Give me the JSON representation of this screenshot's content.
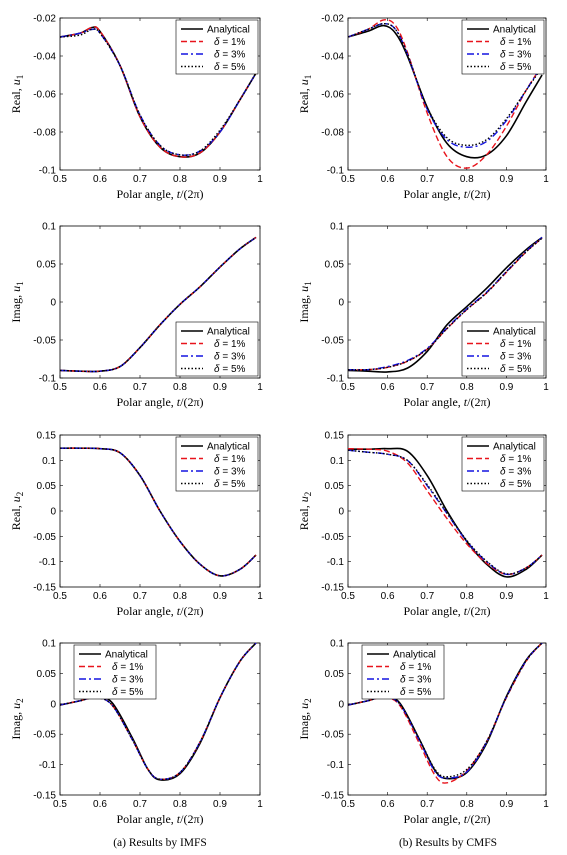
{
  "captions": {
    "left": "(a) Results by IMFS",
    "right": "(b) Results by CMFS"
  },
  "legend_labels": [
    "Analytical",
    "δ = 1%",
    "δ = 3%",
    "δ = 5%"
  ],
  "series_colors": [
    "#000000",
    "#e8141c",
    "#1414e0",
    "#000000"
  ],
  "chart_data": [
    {
      "type": "line",
      "panel": "real-u1-imfs",
      "xlabel": "Polar angle, t/(2π)",
      "ylabel": "Real, u1",
      "xlim": [
        0.5,
        1.0
      ],
      "ylim": [
        -0.1,
        -0.02
      ],
      "xticks": [
        "0.5",
        "0.6",
        "0.7",
        "0.8",
        "0.9",
        "1"
      ],
      "yticks": [
        "-0.1",
        "-0.08",
        "-0.06",
        "-0.04",
        "-0.02"
      ],
      "legend": "top-right",
      "x": [
        0.5,
        0.55,
        0.58,
        0.6,
        0.65,
        0.7,
        0.75,
        0.8,
        0.85,
        0.9,
        0.95,
        0.99
      ],
      "series": [
        {
          "name": "Analytical",
          "values": [
            -0.03,
            -0.028,
            -0.025,
            -0.027,
            -0.045,
            -0.072,
            -0.088,
            -0.093,
            -0.091,
            -0.08,
            -0.063,
            -0.049
          ]
        },
        {
          "name": "δ = 1%",
          "values": [
            -0.03,
            -0.028,
            -0.025,
            -0.027,
            -0.045,
            -0.072,
            -0.088,
            -0.093,
            -0.091,
            -0.08,
            -0.063,
            -0.049
          ]
        },
        {
          "name": "δ = 3%",
          "values": [
            -0.03,
            -0.028,
            -0.026,
            -0.028,
            -0.045,
            -0.071,
            -0.087,
            -0.092,
            -0.09,
            -0.08,
            -0.063,
            -0.049
          ]
        },
        {
          "name": "δ = 5%",
          "values": [
            -0.03,
            -0.029,
            -0.026,
            -0.028,
            -0.045,
            -0.071,
            -0.087,
            -0.092,
            -0.09,
            -0.079,
            -0.063,
            -0.049
          ]
        }
      ]
    },
    {
      "type": "line",
      "panel": "real-u1-cmfs",
      "xlabel": "Polar angle, t/(2π)",
      "ylabel": "Real, u1",
      "xlim": [
        0.5,
        1.0
      ],
      "ylim": [
        -0.1,
        -0.02
      ],
      "xticks": [
        "0.5",
        "0.6",
        "0.7",
        "0.8",
        "0.9",
        "1"
      ],
      "yticks": [
        "-0.1",
        "-0.08",
        "-0.06",
        "-0.04",
        "-0.02"
      ],
      "legend": "top-right",
      "x": [
        0.5,
        0.55,
        0.59,
        0.62,
        0.65,
        0.7,
        0.75,
        0.8,
        0.85,
        0.9,
        0.95,
        0.99
      ],
      "series": [
        {
          "name": "Analytical",
          "values": [
            -0.03,
            -0.027,
            -0.024,
            -0.028,
            -0.04,
            -0.067,
            -0.086,
            -0.093,
            -0.092,
            -0.082,
            -0.064,
            -0.05
          ]
        },
        {
          "name": "δ = 1%",
          "values": [
            -0.03,
            -0.026,
            -0.021,
            -0.024,
            -0.038,
            -0.07,
            -0.093,
            -0.099,
            -0.092,
            -0.077,
            -0.058,
            -0.045
          ]
        },
        {
          "name": "δ = 3%",
          "values": [
            -0.03,
            -0.026,
            -0.023,
            -0.026,
            -0.039,
            -0.068,
            -0.084,
            -0.088,
            -0.085,
            -0.074,
            -0.058,
            -0.045
          ]
        },
        {
          "name": "δ = 5%",
          "values": [
            -0.03,
            -0.026,
            -0.023,
            -0.026,
            -0.039,
            -0.067,
            -0.083,
            -0.087,
            -0.084,
            -0.073,
            -0.058,
            -0.046
          ]
        }
      ]
    },
    {
      "type": "line",
      "panel": "imag-u1-imfs",
      "xlabel": "Polar angle, t/(2π)",
      "ylabel": "Imag, u1",
      "xlim": [
        0.5,
        1.0
      ],
      "ylim": [
        -0.1,
        0.1
      ],
      "xticks": [
        "0.5",
        "0.6",
        "0.7",
        "0.8",
        "0.9",
        "1"
      ],
      "yticks": [
        "-0.1",
        "-0.05",
        "0",
        "0.05",
        "0.1"
      ],
      "legend": "bottom-right",
      "x": [
        0.5,
        0.55,
        0.6,
        0.65,
        0.7,
        0.75,
        0.8,
        0.85,
        0.9,
        0.95,
        0.99
      ],
      "series": [
        {
          "name": "Analytical",
          "values": [
            -0.09,
            -0.091,
            -0.091,
            -0.085,
            -0.06,
            -0.03,
            -0.003,
            0.02,
            0.046,
            0.07,
            0.085
          ]
        },
        {
          "name": "δ = 1%",
          "values": [
            -0.09,
            -0.091,
            -0.091,
            -0.085,
            -0.06,
            -0.03,
            -0.003,
            0.02,
            0.046,
            0.07,
            0.085
          ]
        },
        {
          "name": "δ = 3%",
          "values": [
            -0.09,
            -0.091,
            -0.091,
            -0.085,
            -0.06,
            -0.03,
            -0.003,
            0.02,
            0.046,
            0.07,
            0.085
          ]
        },
        {
          "name": "δ = 5%",
          "values": [
            -0.09,
            -0.091,
            -0.091,
            -0.085,
            -0.06,
            -0.03,
            -0.003,
            0.02,
            0.046,
            0.07,
            0.085
          ]
        }
      ]
    },
    {
      "type": "line",
      "panel": "imag-u1-cmfs",
      "xlabel": "Polar angle, t/(2π)",
      "ylabel": "Imag, u1",
      "xlim": [
        0.5,
        1.0
      ],
      "ylim": [
        -0.1,
        0.1
      ],
      "xticks": [
        "0.5",
        "0.6",
        "0.7",
        "0.8",
        "0.9",
        "1"
      ],
      "yticks": [
        "-0.1",
        "-0.05",
        "0",
        "0.05",
        "0.1"
      ],
      "legend": "bottom-right",
      "x": [
        0.5,
        0.55,
        0.6,
        0.65,
        0.7,
        0.75,
        0.8,
        0.85,
        0.9,
        0.95,
        0.99
      ],
      "series": [
        {
          "name": "Analytical",
          "values": [
            -0.09,
            -0.091,
            -0.092,
            -0.087,
            -0.065,
            -0.03,
            -0.006,
            0.018,
            0.045,
            0.069,
            0.085
          ]
        },
        {
          "name": "δ = 1%",
          "values": [
            -0.089,
            -0.089,
            -0.086,
            -0.078,
            -0.062,
            -0.035,
            -0.01,
            0.012,
            0.039,
            0.066,
            0.084
          ]
        },
        {
          "name": "δ = 3%",
          "values": [
            -0.089,
            -0.089,
            -0.085,
            -0.077,
            -0.061,
            -0.034,
            -0.009,
            0.013,
            0.04,
            0.067,
            0.085
          ]
        },
        {
          "name": "δ = 5%",
          "values": [
            -0.089,
            -0.089,
            -0.086,
            -0.078,
            -0.062,
            -0.035,
            -0.01,
            0.012,
            0.04,
            0.066,
            0.084
          ]
        }
      ]
    },
    {
      "type": "line",
      "panel": "real-u2-imfs",
      "xlabel": "Polar angle, t/(2π)",
      "ylabel": "Real, u2",
      "xlim": [
        0.5,
        1.0
      ],
      "ylim": [
        -0.15,
        0.15
      ],
      "xticks": [
        "0.5",
        "0.6",
        "0.7",
        "0.8",
        "0.9",
        "1"
      ],
      "yticks": [
        "-0.15",
        "-0.1",
        "-0.05",
        "0",
        "0.05",
        "0.1",
        "0.15"
      ],
      "legend": "top-right",
      "x": [
        0.5,
        0.55,
        0.6,
        0.65,
        0.7,
        0.75,
        0.8,
        0.85,
        0.9,
        0.95,
        0.99
      ],
      "series": [
        {
          "name": "Analytical",
          "values": [
            0.124,
            0.124,
            0.123,
            0.115,
            0.07,
            0.0,
            -0.06,
            -0.105,
            -0.128,
            -0.115,
            -0.087
          ]
        },
        {
          "name": "δ = 1%",
          "values": [
            0.124,
            0.124,
            0.123,
            0.115,
            0.07,
            0.0,
            -0.06,
            -0.105,
            -0.128,
            -0.115,
            -0.087
          ]
        },
        {
          "name": "δ = 3%",
          "values": [
            0.124,
            0.124,
            0.123,
            0.115,
            0.07,
            0.0,
            -0.06,
            -0.105,
            -0.128,
            -0.115,
            -0.087
          ]
        },
        {
          "name": "δ = 5%",
          "values": [
            0.124,
            0.124,
            0.123,
            0.115,
            0.07,
            0.0,
            -0.06,
            -0.105,
            -0.128,
            -0.115,
            -0.087
          ]
        }
      ]
    },
    {
      "type": "line",
      "panel": "real-u2-cmfs",
      "xlabel": "Polar angle, t/(2π)",
      "ylabel": "Real, u2",
      "xlim": [
        0.5,
        1.0
      ],
      "ylim": [
        -0.15,
        0.15
      ],
      "xticks": [
        "0.5",
        "0.6",
        "0.7",
        "0.8",
        "0.9",
        "1"
      ],
      "yticks": [
        "-0.15",
        "-0.1",
        "-0.05",
        "0",
        "0.05",
        "0.1",
        "0.15"
      ],
      "legend": "top-right",
      "x": [
        0.5,
        0.55,
        0.6,
        0.65,
        0.7,
        0.75,
        0.8,
        0.85,
        0.9,
        0.95,
        0.99
      ],
      "series": [
        {
          "name": "Analytical",
          "values": [
            0.122,
            0.122,
            0.123,
            0.118,
            0.07,
            0.0,
            -0.06,
            -0.105,
            -0.13,
            -0.115,
            -0.087
          ]
        },
        {
          "name": "δ = 1%",
          "values": [
            0.123,
            0.122,
            0.118,
            0.095,
            0.04,
            -0.015,
            -0.065,
            -0.103,
            -0.125,
            -0.112,
            -0.087
          ]
        },
        {
          "name": "δ = 3%",
          "values": [
            0.12,
            0.116,
            0.112,
            0.1,
            0.05,
            -0.005,
            -0.06,
            -0.1,
            -0.125,
            -0.112,
            -0.087
          ]
        },
        {
          "name": "δ = 5%",
          "values": [
            0.12,
            0.116,
            0.112,
            0.1,
            0.052,
            -0.004,
            -0.058,
            -0.099,
            -0.124,
            -0.112,
            -0.087
          ]
        }
      ]
    },
    {
      "type": "line",
      "panel": "imag-u2-imfs",
      "xlabel": "Polar angle, t/(2π)",
      "ylabel": "Imag, u2",
      "xlim": [
        0.5,
        1.0
      ],
      "ylim": [
        -0.15,
        0.1
      ],
      "xticks": [
        "0.5",
        "0.6",
        "0.7",
        "0.8",
        "0.9",
        "1"
      ],
      "yticks": [
        "-0.15",
        "-0.1",
        "-0.05",
        "0",
        "0.05",
        "0.1"
      ],
      "legend": "top-left",
      "x": [
        0.5,
        0.55,
        0.59,
        0.63,
        0.68,
        0.72,
        0.75,
        0.8,
        0.85,
        0.9,
        0.95,
        0.99
      ],
      "series": [
        {
          "name": "Analytical",
          "values": [
            -0.002,
            0.005,
            0.012,
            0.002,
            -0.055,
            -0.108,
            -0.125,
            -0.115,
            -0.065,
            0.01,
            0.07,
            0.1
          ]
        },
        {
          "name": "δ = 1%",
          "values": [
            -0.002,
            0.005,
            0.01,
            -0.002,
            -0.058,
            -0.108,
            -0.124,
            -0.113,
            -0.063,
            0.01,
            0.07,
            0.1
          ]
        },
        {
          "name": "δ = 3%",
          "values": [
            -0.002,
            0.005,
            0.01,
            -0.002,
            -0.058,
            -0.108,
            -0.124,
            -0.113,
            -0.063,
            0.01,
            0.07,
            0.1
          ]
        },
        {
          "name": "δ = 5%",
          "values": [
            -0.002,
            0.005,
            0.01,
            -0.002,
            -0.058,
            -0.108,
            -0.124,
            -0.113,
            -0.063,
            0.01,
            0.07,
            0.1
          ]
        }
      ]
    },
    {
      "type": "line",
      "panel": "imag-u2-cmfs",
      "xlabel": "Polar angle, t/(2π)",
      "ylabel": "Imag, u2",
      "xlim": [
        0.5,
        1.0
      ],
      "ylim": [
        -0.15,
        0.1
      ],
      "xticks": [
        "0.5",
        "0.6",
        "0.7",
        "0.8",
        "0.9",
        "1"
      ],
      "yticks": [
        "-0.15",
        "-0.1",
        "-0.05",
        "0",
        "0.05",
        "0.1"
      ],
      "legend": "top-left",
      "x": [
        0.5,
        0.55,
        0.59,
        0.63,
        0.68,
        0.72,
        0.75,
        0.8,
        0.85,
        0.9,
        0.95,
        0.99
      ],
      "series": [
        {
          "name": "Analytical",
          "values": [
            -0.002,
            0.005,
            0.012,
            0.002,
            -0.058,
            -0.11,
            -0.123,
            -0.113,
            -0.065,
            0.012,
            0.072,
            0.1
          ]
        },
        {
          "name": "δ = 1%",
          "values": [
            -0.002,
            0.005,
            0.01,
            -0.002,
            -0.065,
            -0.118,
            -0.13,
            -0.11,
            -0.062,
            0.01,
            0.07,
            0.1
          ]
        },
        {
          "name": "δ = 3%",
          "values": [
            -0.002,
            0.005,
            0.011,
            0.0,
            -0.06,
            -0.112,
            -0.122,
            -0.112,
            -0.063,
            0.011,
            0.071,
            0.1
          ]
        },
        {
          "name": "δ = 5%",
          "values": [
            -0.002,
            0.005,
            0.011,
            0.0,
            -0.058,
            -0.108,
            -0.12,
            -0.108,
            -0.062,
            0.011,
            0.071,
            0.1
          ]
        }
      ]
    }
  ]
}
